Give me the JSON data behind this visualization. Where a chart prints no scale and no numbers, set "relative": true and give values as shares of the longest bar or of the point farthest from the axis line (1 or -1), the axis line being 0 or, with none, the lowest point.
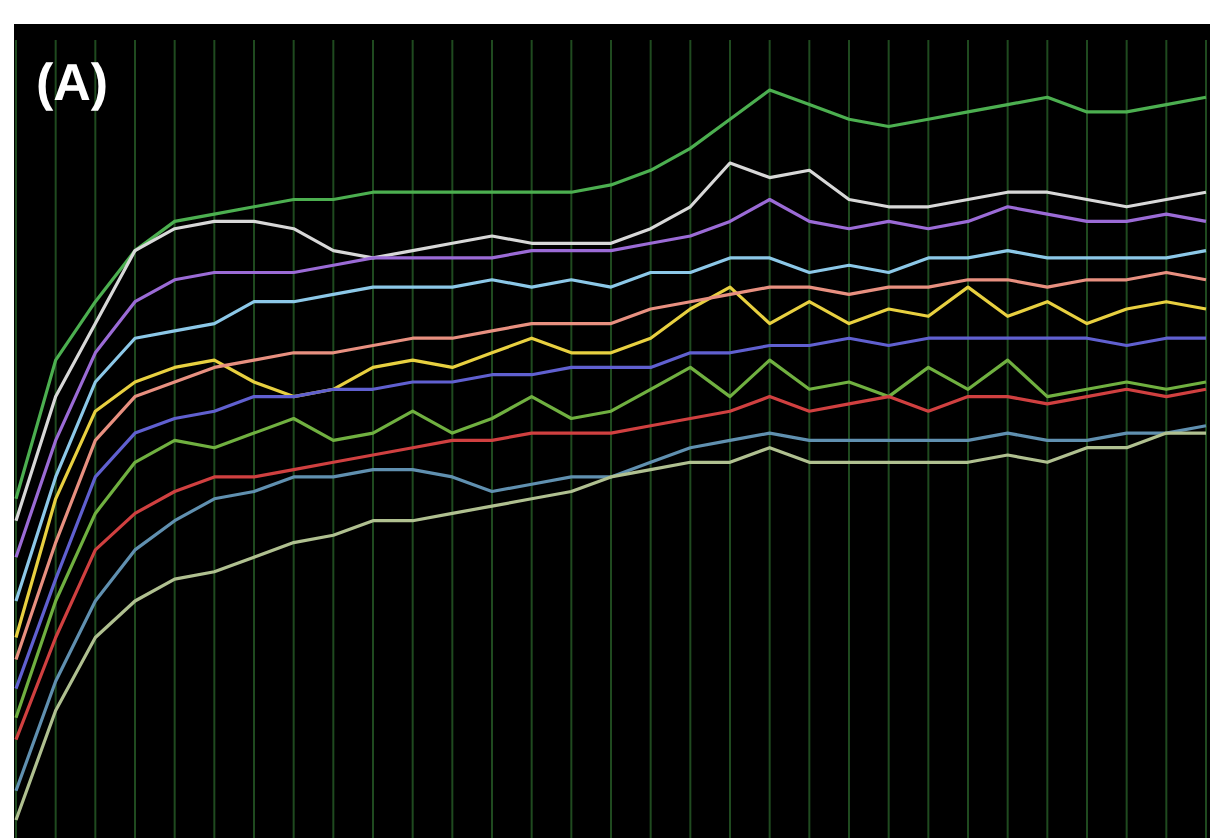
{
  "chart_data": {
    "type": "line",
    "relative": true,
    "grid": "x",
    "marker": "none",
    "line_style": "solid",
    "annotations": [
      "(A)"
    ],
    "categories": [
      null,
      null,
      null,
      null,
      null,
      null,
      null,
      null,
      null,
      null,
      null,
      null,
      null,
      null,
      null,
      null,
      null,
      null,
      null,
      null,
      null,
      null,
      null,
      null,
      null,
      null,
      null,
      null,
      null,
      null,
      null
    ],
    "series": [
      {
        "color": "#4caf50",
        "values": [
          0.44,
          0.63,
          0.71,
          0.78,
          0.82,
          0.83,
          0.84,
          0.85,
          0.85,
          0.86,
          0.86,
          0.86,
          0.86,
          0.86,
          0.86,
          0.87,
          0.89,
          0.92,
          0.96,
          1,
          0.98,
          0.96,
          0.95,
          0.96,
          0.97,
          0.98,
          0.99,
          0.97,
          0.97,
          0.98,
          0.99
        ]
      },
      {
        "color": "#d8d8d8",
        "values": [
          0.41,
          0.58,
          0.68,
          0.78,
          0.81,
          0.82,
          0.82,
          0.81,
          0.78,
          0.77,
          0.78,
          0.79,
          0.8,
          0.79,
          0.79,
          0.79,
          0.81,
          0.84,
          0.9,
          0.88,
          0.89,
          0.85,
          0.84,
          0.84,
          0.85,
          0.86,
          0.86,
          0.85,
          0.84,
          0.85,
          0.86
        ]
      },
      {
        "color": "#9b6bd6",
        "values": [
          0.36,
          0.52,
          0.64,
          0.71,
          0.74,
          0.75,
          0.75,
          0.75,
          0.76,
          0.77,
          0.77,
          0.77,
          0.77,
          0.78,
          0.78,
          0.78,
          0.79,
          0.8,
          0.82,
          0.85,
          0.82,
          0.81,
          0.82,
          0.81,
          0.82,
          0.84,
          0.83,
          0.82,
          0.82,
          0.83,
          0.82
        ]
      },
      {
        "color": "#8cc8e8",
        "values": [
          0.3,
          0.47,
          0.6,
          0.66,
          0.67,
          0.68,
          0.71,
          0.71,
          0.72,
          0.73,
          0.73,
          0.73,
          0.74,
          0.73,
          0.74,
          0.73,
          0.75,
          0.75,
          0.77,
          0.77,
          0.75,
          0.76,
          0.75,
          0.77,
          0.77,
          0.78,
          0.77,
          0.77,
          0.77,
          0.77,
          0.78
        ]
      },
      {
        "color": "#e8d040",
        "values": [
          0.25,
          0.44,
          0.56,
          0.6,
          0.62,
          0.63,
          0.6,
          0.58,
          0.59,
          0.62,
          0.63,
          0.62,
          0.64,
          0.66,
          0.64,
          0.64,
          0.66,
          0.7,
          0.73,
          0.68,
          0.71,
          0.68,
          0.7,
          0.69,
          0.73,
          0.69,
          0.71,
          0.68,
          0.7,
          0.71,
          0.7
        ]
      },
      {
        "color": "#e89080",
        "values": [
          0.22,
          0.38,
          0.52,
          0.58,
          0.6,
          0.62,
          0.63,
          0.64,
          0.64,
          0.65,
          0.66,
          0.66,
          0.67,
          0.68,
          0.68,
          0.68,
          0.7,
          0.71,
          0.72,
          0.73,
          0.73,
          0.72,
          0.73,
          0.73,
          0.74,
          0.74,
          0.73,
          0.74,
          0.74,
          0.75,
          0.74
        ]
      },
      {
        "color": "#6060d0",
        "values": [
          0.18,
          0.33,
          0.47,
          0.53,
          0.55,
          0.56,
          0.58,
          0.58,
          0.59,
          0.59,
          0.6,
          0.6,
          0.61,
          0.61,
          0.62,
          0.62,
          0.62,
          0.64,
          0.64,
          0.65,
          0.65,
          0.66,
          0.65,
          0.66,
          0.66,
          0.66,
          0.66,
          0.66,
          0.65,
          0.66,
          0.66
        ]
      },
      {
        "color": "#70b040",
        "values": [
          0.14,
          0.3,
          0.42,
          0.49,
          0.52,
          0.51,
          0.53,
          0.55,
          0.52,
          0.53,
          0.56,
          0.53,
          0.55,
          0.58,
          0.55,
          0.56,
          0.59,
          0.62,
          0.58,
          0.63,
          0.59,
          0.6,
          0.58,
          0.62,
          0.59,
          0.63,
          0.58,
          0.59,
          0.6,
          0.59,
          0.6
        ]
      },
      {
        "color": "#d04040",
        "values": [
          0.11,
          0.25,
          0.37,
          0.42,
          0.45,
          0.47,
          0.47,
          0.48,
          0.49,
          0.5,
          0.51,
          0.52,
          0.52,
          0.53,
          0.53,
          0.53,
          0.54,
          0.55,
          0.56,
          0.58,
          0.56,
          0.57,
          0.58,
          0.56,
          0.58,
          0.58,
          0.57,
          0.58,
          0.59,
          0.58,
          0.59
        ]
      },
      {
        "color": "#6090b0",
        "values": [
          0.04,
          0.19,
          0.3,
          0.37,
          0.41,
          0.44,
          0.45,
          0.47,
          0.47,
          0.48,
          0.48,
          0.47,
          0.45,
          0.46,
          0.47,
          0.47,
          0.49,
          0.51,
          0.52,
          0.53,
          0.52,
          0.52,
          0.52,
          0.52,
          0.52,
          0.53,
          0.52,
          0.52,
          0.53,
          0.53,
          0.54
        ]
      },
      {
        "color": "#b0c090",
        "values": [
          0,
          0.15,
          0.25,
          0.3,
          0.33,
          0.34,
          0.36,
          0.38,
          0.39,
          0.41,
          0.41,
          0.42,
          0.43,
          0.44,
          0.45,
          0.47,
          0.48,
          0.49,
          0.49,
          0.51,
          0.49,
          0.49,
          0.49,
          0.49,
          0.49,
          0.5,
          0.49,
          0.51,
          0.51,
          0.53,
          0.53
        ]
      }
    ]
  }
}
